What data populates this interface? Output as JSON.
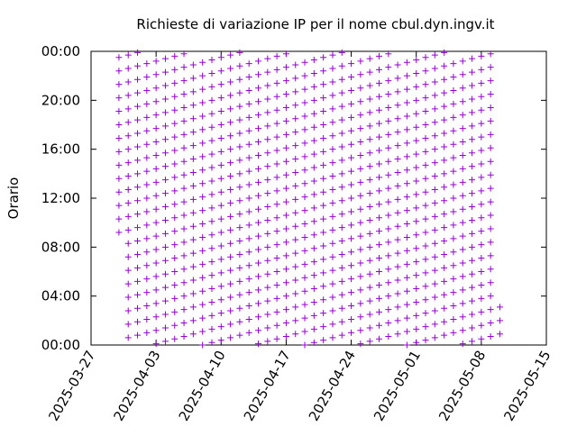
{
  "chart_data": {
    "type": "scatter",
    "title": "Richieste di variazione IP per il nome cbul.dyn.ingv.it",
    "y_label": "Orario",
    "color": "#9400d3",
    "xlim": [
      "2025-03-27",
      "2025-05-15"
    ],
    "xticks": [
      "2025-03-27",
      "2025-04-03",
      "2025-04-10",
      "2025-04-17",
      "2025-04-24",
      "2025-05-01",
      "2025-05-08",
      "2025-05-15"
    ],
    "ylim": [
      0,
      24
    ],
    "yticks": [
      {
        "value": 0,
        "label": "00:00"
      },
      {
        "value": 4,
        "label": "04:00"
      },
      {
        "value": 8,
        "label": "08:00"
      },
      {
        "value": 12,
        "label": "12:00"
      },
      {
        "value": 16,
        "label": "16:00"
      },
      {
        "value": 20,
        "label": "20:00"
      },
      {
        "value": 24,
        "label": "00:00"
      }
    ],
    "columns": [
      {
        "x": "2025-03-30",
        "y": [
          9.2,
          10.3,
          11.4,
          12.5,
          13.6,
          14.7,
          15.8,
          16.9,
          18,
          19.1,
          20.2,
          21.3,
          22.4,
          23.5
        ]
      },
      {
        "x": "2025-03-31",
        "y": [
          0.6,
          1.7,
          2.8,
          3.9,
          5,
          6.1,
          7.2,
          8.3,
          9.4,
          10.5,
          11.6,
          12.7,
          13.8,
          14.9,
          16,
          17.1,
          18.2,
          19.3,
          20.4,
          21.5,
          22.6,
          23.7
        ]
      },
      {
        "x": "2025-04-01",
        "y": [
          0.8,
          1.9,
          3,
          4.1,
          5.2,
          6.3,
          7.4,
          8.5,
          9.6,
          10.7,
          11.8,
          12.9,
          14,
          15.1,
          16.2,
          17.3,
          18.4,
          19.5,
          20.6,
          21.7,
          22.8,
          23.9
        ]
      },
      {
        "x": "2025-04-02",
        "y": [
          1,
          2.1,
          3.2,
          4.3,
          5.4,
          6.5,
          7.6,
          8.7,
          9.8,
          10.9,
          12,
          13.1,
          14.2,
          15.3,
          16.4,
          17.5,
          18.6,
          19.7,
          20.8,
          21.9,
          23
        ]
      },
      {
        "x": "2025-04-03",
        "y": [
          0.1,
          1.2,
          2.3,
          3.4,
          4.5,
          5.6,
          6.7,
          7.8,
          8.9,
          10,
          11.1,
          12.2,
          13.3,
          14.4,
          15.5,
          16.6,
          17.7,
          18.8,
          19.9,
          21,
          22.1,
          23.2
        ]
      },
      {
        "x": "2025-04-04",
        "y": [
          0.3,
          1.4,
          2.5,
          3.6,
          4.7,
          5.8,
          6.9,
          8,
          9.1,
          10.2,
          11.3,
          12.4,
          13.5,
          14.6,
          15.7,
          16.8,
          17.9,
          19,
          20.1,
          21.2,
          22.3,
          23.4
        ]
      },
      {
        "x": "2025-04-05",
        "y": [
          0.5,
          1.6,
          2.7,
          3.8,
          4.9,
          6,
          7.1,
          8.2,
          9.3,
          10.4,
          11.5,
          12.6,
          13.7,
          14.8,
          15.9,
          17,
          18.1,
          19.2,
          20.3,
          21.4,
          22.5,
          23.6
        ]
      },
      {
        "x": "2025-04-06",
        "y": [
          0.7,
          1.8,
          2.9,
          4,
          5.1,
          6.2,
          7.3,
          8.4,
          9.5,
          10.6,
          11.7,
          12.8,
          13.9,
          15,
          16.1,
          17.2,
          18.3,
          19.4,
          20.5,
          21.6,
          22.7,
          23.8
        ]
      },
      {
        "x": "2025-04-07",
        "y": [
          0.9,
          2,
          3.1,
          4.2,
          5.3,
          6.4,
          7.5,
          8.6,
          9.7,
          10.8,
          11.9,
          13,
          14.1,
          15.2,
          16.3,
          17.4,
          18.5,
          19.6,
          20.7,
          21.8,
          22.9
        ]
      },
      {
        "x": "2025-04-08",
        "y": [
          0,
          1.1,
          2.2,
          3.3,
          4.4,
          5.5,
          6.6,
          7.7,
          8.8,
          9.9,
          11,
          12.1,
          13.2,
          14.3,
          15.4,
          16.5,
          17.6,
          18.7,
          19.8,
          20.9,
          22,
          23.1
        ]
      },
      {
        "x": "2025-04-09",
        "y": [
          0.2,
          1.3,
          2.4,
          3.5,
          4.6,
          5.7,
          6.8,
          7.9,
          9,
          10.1,
          11.2,
          12.3,
          13.4,
          14.5,
          15.6,
          16.7,
          17.8,
          18.9,
          20,
          21.1,
          22.2,
          23.3
        ]
      },
      {
        "x": "2025-04-10",
        "y": [
          0.4,
          1.5,
          2.6,
          3.7,
          4.8,
          5.9,
          7,
          8.1,
          9.2,
          10.3,
          11.4,
          12.5,
          13.6,
          14.7,
          15.8,
          16.9,
          18,
          19.1,
          20.2,
          21.3,
          22.4,
          23.5
        ]
      },
      {
        "x": "2025-04-11",
        "y": [
          0.6,
          1.7,
          2.8,
          3.9,
          5,
          6.1,
          7.2,
          8.3,
          9.4,
          10.5,
          11.6,
          12.7,
          13.8,
          14.9,
          16,
          17.1,
          18.2,
          19.3,
          20.4,
          21.5,
          22.6,
          23.7
        ]
      },
      {
        "x": "2025-04-12",
        "y": [
          0.8,
          1.9,
          3,
          4.1,
          5.2,
          6.3,
          7.4,
          8.5,
          9.6,
          10.7,
          11.8,
          12.9,
          14,
          15.1,
          16.2,
          17.3,
          18.4,
          19.5,
          20.6,
          21.7,
          22.8,
          23.9
        ]
      },
      {
        "x": "2025-04-13",
        "y": [
          1,
          2.1,
          3.2,
          4.3,
          5.4,
          6.5,
          7.6,
          8.7,
          9.8,
          10.9,
          12,
          13.1,
          14.2,
          15.3,
          16.4,
          17.5,
          18.6,
          19.7,
          20.8,
          21.9,
          23
        ]
      },
      {
        "x": "2025-04-14",
        "y": [
          0.1,
          1.2,
          2.3,
          3.4,
          4.5,
          5.6,
          6.7,
          7.8,
          8.9,
          10,
          11.1,
          12.2,
          13.3,
          14.4,
          15.5,
          16.6,
          17.7,
          18.8,
          19.9,
          21,
          22.1,
          23.2
        ]
      },
      {
        "x": "2025-04-15",
        "y": [
          0.3,
          1.4,
          2.5,
          3.6,
          4.7,
          5.8,
          6.9,
          8,
          9.1,
          10.2,
          11.3,
          12.4,
          13.5,
          14.6,
          15.7,
          16.8,
          17.9,
          19,
          20.1,
          21.2,
          22.3,
          23.4
        ]
      },
      {
        "x": "2025-04-16",
        "y": [
          0.5,
          1.6,
          2.7,
          3.8,
          4.9,
          6,
          7.1,
          8.2,
          9.3,
          10.4,
          11.5,
          12.6,
          13.7,
          14.8,
          15.9,
          17,
          18.1,
          19.2,
          20.3,
          21.4,
          22.5,
          23.6
        ]
      },
      {
        "x": "2025-04-17",
        "y": [
          0.7,
          1.8,
          2.9,
          4,
          5.1,
          6.2,
          7.3,
          8.4,
          9.5,
          10.6,
          11.7,
          12.8,
          13.9,
          15,
          16.1,
          17.2,
          18.3,
          19.4,
          20.5,
          21.6,
          22.7,
          23.8
        ]
      },
      {
        "x": "2025-04-18",
        "y": [
          0.9,
          2,
          3.1,
          4.2,
          5.3,
          6.4,
          7.5,
          8.6,
          9.7,
          10.8,
          11.9,
          13,
          14.1,
          15.2,
          16.3,
          17.4,
          18.5,
          19.6,
          20.7,
          21.8,
          22.9
        ]
      },
      {
        "x": "2025-04-19",
        "y": [
          0,
          1.1,
          2.2,
          3.3,
          4.4,
          5.5,
          6.6,
          7.7,
          8.8,
          9.9,
          11,
          12.1,
          13.2,
          14.3,
          15.4,
          16.5,
          17.6,
          18.7,
          19.8,
          20.9,
          22,
          23.1
        ]
      },
      {
        "x": "2025-04-20",
        "y": [
          0.2,
          1.3,
          2.4,
          3.5,
          4.6,
          5.7,
          6.8,
          7.9,
          9,
          10.1,
          11.2,
          12.3,
          13.4,
          14.5,
          15.6,
          16.7,
          17.8,
          18.9,
          20,
          21.1,
          22.2,
          23.3
        ]
      },
      {
        "x": "2025-04-21",
        "y": [
          0.4,
          1.5,
          2.6,
          3.7,
          4.8,
          5.9,
          7,
          8.1,
          9.2,
          10.3,
          11.4,
          12.5,
          13.6,
          14.7,
          15.8,
          16.9,
          18,
          19.1,
          20.2,
          21.3,
          22.4,
          23.5
        ]
      },
      {
        "x": "2025-04-22",
        "y": [
          0.6,
          1.7,
          2.8,
          3.9,
          5,
          6.1,
          7.2,
          8.3,
          9.4,
          10.5,
          11.6,
          12.7,
          13.8,
          14.9,
          16,
          17.1,
          18.2,
          19.3,
          20.4,
          21.5,
          22.6,
          23.7
        ]
      },
      {
        "x": "2025-04-23",
        "y": [
          0.8,
          1.9,
          3,
          4.1,
          5.2,
          6.3,
          7.4,
          8.5,
          9.6,
          10.7,
          11.8,
          12.9,
          14,
          15.1,
          16.2,
          17.3,
          18.4,
          19.5,
          20.6,
          21.7,
          22.8,
          23.9
        ]
      },
      {
        "x": "2025-04-24",
        "y": [
          1,
          2.1,
          3.2,
          4.3,
          5.4,
          6.5,
          7.6,
          8.7,
          9.8,
          10.9,
          12,
          13.1,
          14.2,
          15.3,
          16.4,
          17.5,
          18.6,
          19.7,
          20.8,
          21.9,
          23
        ]
      },
      {
        "x": "2025-04-25",
        "y": [
          0.1,
          1.2,
          2.3,
          3.4,
          4.5,
          5.6,
          6.7,
          7.8,
          8.9,
          10,
          11.1,
          12.2,
          13.3,
          14.4,
          15.5,
          16.6,
          17.7,
          18.8,
          19.9,
          21,
          22.1,
          23.2
        ]
      },
      {
        "x": "2025-04-26",
        "y": [
          0.3,
          1.4,
          2.5,
          3.6,
          4.7,
          5.8,
          6.9,
          8,
          9.1,
          10.2,
          11.3,
          12.4,
          13.5,
          14.6,
          15.7,
          16.8,
          17.9,
          19,
          20.1,
          21.2,
          22.3,
          23.4
        ]
      },
      {
        "x": "2025-04-27",
        "y": [
          0.5,
          1.6,
          2.7,
          3.8,
          4.9,
          6,
          7.1,
          8.2,
          9.3,
          10.4,
          11.5,
          12.6,
          13.7,
          14.8,
          15.9,
          17,
          18.1,
          19.2,
          20.3,
          21.4,
          22.5,
          23.6
        ]
      },
      {
        "x": "2025-04-28",
        "y": [
          0.7,
          1.8,
          2.9,
          4,
          5.1,
          6.2,
          7.3,
          8.4,
          9.5,
          10.6,
          11.7,
          12.8,
          13.9,
          15,
          16.1,
          17.2,
          18.3,
          19.4,
          20.5,
          21.6,
          22.7,
          23.8
        ]
      },
      {
        "x": "2025-04-29",
        "y": [
          0.9,
          2,
          3.1,
          4.2,
          5.3,
          6.4,
          7.5,
          8.6,
          9.7,
          10.8,
          11.9,
          13,
          14.1,
          15.2,
          16.3,
          17.4,
          18.5,
          19.6,
          20.7,
          21.8,
          22.9
        ]
      },
      {
        "x": "2025-04-30",
        "y": [
          0,
          1.1,
          2.2,
          3.3,
          4.4,
          5.5,
          6.6,
          7.7,
          8.8,
          9.9,
          11,
          12.1,
          13.2,
          14.3,
          15.4,
          16.5,
          17.6,
          18.7,
          19.8,
          20.9,
          22,
          23.1
        ]
      },
      {
        "x": "2025-05-01",
        "y": [
          0.2,
          1.3,
          2.4,
          3.5,
          4.6,
          5.7,
          6.8,
          7.9,
          9,
          10.1,
          11.2,
          12.3,
          13.4,
          14.5,
          15.6,
          16.7,
          17.8,
          18.9,
          20,
          21.1,
          22.2,
          23.3
        ]
      },
      {
        "x": "2025-05-02",
        "y": [
          0.4,
          1.5,
          2.6,
          3.7,
          4.8,
          5.9,
          7,
          8.1,
          9.2,
          10.3,
          11.4,
          12.5,
          13.6,
          14.7,
          15.8,
          16.9,
          18,
          19.1,
          20.2,
          21.3,
          22.4,
          23.5
        ]
      },
      {
        "x": "2025-05-03",
        "y": [
          0.6,
          1.7,
          2.8,
          3.9,
          5,
          6.1,
          7.2,
          8.3,
          9.4,
          10.5,
          11.6,
          12.7,
          13.8,
          14.9,
          16,
          17.1,
          18.2,
          19.3,
          20.4,
          21.5,
          22.6,
          23.7
        ]
      },
      {
        "x": "2025-05-04",
        "y": [
          0.8,
          1.9,
          3,
          4.1,
          5.2,
          6.3,
          7.4,
          8.5,
          9.6,
          10.7,
          11.8,
          12.9,
          14,
          15.1,
          16.2,
          17.3,
          18.4,
          19.5,
          20.6,
          21.7,
          22.8,
          23.9
        ]
      },
      {
        "x": "2025-05-05",
        "y": [
          1,
          2.1,
          3.2,
          4.3,
          5.4,
          6.5,
          7.6,
          8.7,
          9.8,
          10.9,
          12,
          13.1,
          14.2,
          15.3,
          16.4,
          17.5,
          18.6,
          19.7,
          20.8,
          21.9,
          23
        ]
      },
      {
        "x": "2025-05-06",
        "y": [
          0.1,
          1.2,
          2.3,
          3.4,
          4.5,
          5.6,
          6.7,
          7.8,
          8.9,
          10,
          11.1,
          12.2,
          13.3,
          14.4,
          15.5,
          16.6,
          17.7,
          18.8,
          19.9,
          21,
          22.1,
          23.2
        ]
      },
      {
        "x": "2025-05-07",
        "y": [
          0.3,
          1.4,
          2.5,
          3.6,
          4.7,
          5.8,
          6.9,
          8,
          9.1,
          10.2,
          11.3,
          12.4,
          13.5,
          14.6,
          15.7,
          16.8,
          17.9,
          19,
          20.1,
          21.2,
          22.3,
          23.4
        ]
      },
      {
        "x": "2025-05-08",
        "y": [
          0.5,
          1.6,
          2.7,
          3.8,
          4.9,
          6,
          7.1,
          8.2,
          9.3,
          10.4,
          11.5,
          12.6,
          13.7,
          14.8,
          15.9,
          17,
          18.1,
          19.2,
          20.3,
          21.4,
          22.5,
          23.6
        ]
      },
      {
        "x": "2025-05-09",
        "y": [
          0.7,
          1.8,
          2.9,
          4,
          5.1,
          6.2,
          7.3,
          8.4,
          9.5,
          10.6,
          11.7,
          12.8,
          13.9,
          15,
          16.1,
          17.2,
          18.3,
          19.4,
          20.5,
          21.6,
          22.7,
          23.8
        ]
      },
      {
        "x": "2025-05-10",
        "y": [
          0.9,
          2,
          3.1
        ]
      }
    ]
  }
}
